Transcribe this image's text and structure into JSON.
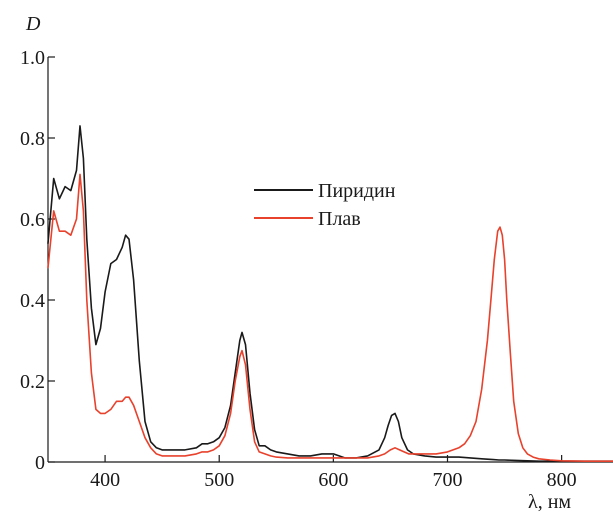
{
  "chart_data": {
    "type": "line",
    "ylabel": "D",
    "xlabel": "λ, нм",
    "xlim": [
      350,
      845
    ],
    "ylim": [
      0,
      1.0
    ],
    "x_ticks": [
      400,
      500,
      600,
      700,
      800
    ],
    "x_tick_labels": [
      "400",
      "500",
      "600",
      "700",
      "800"
    ],
    "y_ticks": [
      0,
      0.2,
      0.4,
      0.6,
      0.8,
      1.0
    ],
    "y_tick_labels": [
      "0",
      "0.2",
      "0.4",
      "0.6",
      "0.8",
      "1.0"
    ],
    "legend_position": "center-right",
    "series": [
      {
        "name": "Пиридин",
        "color": "#1a1a1a",
        "x": [
          350,
          355,
          360,
          365,
          370,
          375,
          378,
          381,
          384,
          388,
          392,
          396,
          400,
          405,
          410,
          415,
          418,
          421,
          425,
          430,
          435,
          440,
          445,
          450,
          460,
          470,
          480,
          485,
          490,
          495,
          500,
          505,
          510,
          514,
          518,
          520,
          523,
          527,
          531,
          535,
          540,
          545,
          550,
          560,
          570,
          580,
          590,
          595,
          600,
          605,
          610,
          620,
          630,
          640,
          645,
          648,
          651,
          654,
          657,
          660,
          665,
          670,
          680,
          690,
          700,
          710,
          720,
          730,
          740,
          745,
          750,
          760,
          770,
          780,
          790,
          800,
          820,
          845
        ],
        "values": [
          0.54,
          0.7,
          0.65,
          0.68,
          0.67,
          0.72,
          0.83,
          0.75,
          0.55,
          0.38,
          0.29,
          0.33,
          0.42,
          0.49,
          0.5,
          0.53,
          0.56,
          0.55,
          0.45,
          0.25,
          0.1,
          0.05,
          0.035,
          0.03,
          0.03,
          0.03,
          0.035,
          0.045,
          0.045,
          0.05,
          0.06,
          0.085,
          0.14,
          0.22,
          0.3,
          0.32,
          0.29,
          0.17,
          0.08,
          0.04,
          0.04,
          0.03,
          0.025,
          0.02,
          0.015,
          0.015,
          0.02,
          0.02,
          0.02,
          0.015,
          0.01,
          0.01,
          0.015,
          0.03,
          0.06,
          0.09,
          0.115,
          0.12,
          0.1,
          0.06,
          0.03,
          0.02,
          0.015,
          0.012,
          0.012,
          0.012,
          0.01,
          0.008,
          0.006,
          0.005,
          0.005,
          0.004,
          0.003,
          0.002,
          0.002,
          0.002,
          0.002,
          0.002
        ]
      },
      {
        "name": "Плав",
        "color": "#e8412c",
        "x": [
          350,
          355,
          360,
          365,
          370,
          375,
          378,
          381,
          384,
          388,
          392,
          396,
          400,
          405,
          410,
          415,
          418,
          421,
          425,
          430,
          435,
          440,
          445,
          450,
          460,
          470,
          480,
          485,
          490,
          495,
          500,
          505,
          510,
          514,
          518,
          520,
          523,
          527,
          531,
          535,
          540,
          545,
          550,
          560,
          570,
          580,
          590,
          600,
          610,
          620,
          630,
          640,
          645,
          650,
          654,
          658,
          662,
          666,
          670,
          680,
          690,
          700,
          710,
          715,
          720,
          725,
          730,
          735,
          738,
          741,
          744,
          746,
          748,
          750,
          752,
          755,
          758,
          762,
          766,
          770,
          775,
          780,
          790,
          800,
          820,
          845
        ],
        "values": [
          0.48,
          0.62,
          0.57,
          0.57,
          0.56,
          0.6,
          0.71,
          0.62,
          0.4,
          0.22,
          0.13,
          0.12,
          0.12,
          0.13,
          0.15,
          0.15,
          0.16,
          0.16,
          0.14,
          0.1,
          0.06,
          0.035,
          0.02,
          0.015,
          0.015,
          0.015,
          0.02,
          0.025,
          0.025,
          0.03,
          0.04,
          0.065,
          0.12,
          0.2,
          0.26,
          0.275,
          0.24,
          0.13,
          0.05,
          0.025,
          0.02,
          0.015,
          0.012,
          0.01,
          0.01,
          0.01,
          0.01,
          0.01,
          0.01,
          0.01,
          0.01,
          0.015,
          0.02,
          0.03,
          0.035,
          0.03,
          0.025,
          0.02,
          0.02,
          0.02,
          0.02,
          0.025,
          0.035,
          0.045,
          0.065,
          0.1,
          0.18,
          0.3,
          0.4,
          0.5,
          0.57,
          0.58,
          0.56,
          0.5,
          0.4,
          0.27,
          0.15,
          0.07,
          0.035,
          0.02,
          0.012,
          0.008,
          0.005,
          0.003,
          0.002,
          0.002
        ]
      }
    ]
  }
}
